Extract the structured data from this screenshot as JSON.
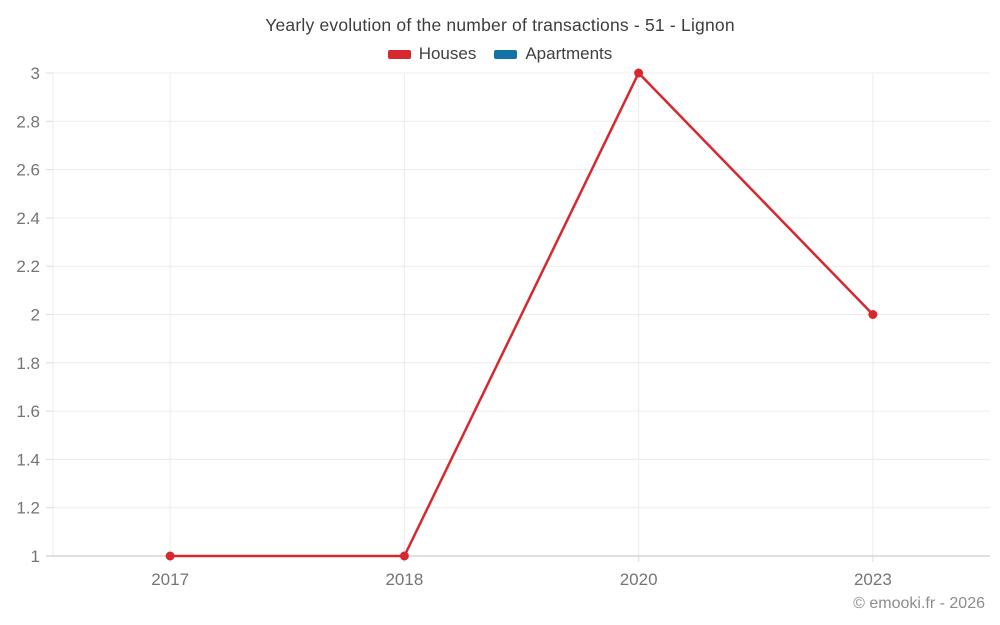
{
  "chart_data": {
    "type": "line",
    "title": "Yearly evolution of the number of transactions - 51 - Lignon",
    "categories": [
      "2017",
      "2018",
      "2020",
      "2023"
    ],
    "series": [
      {
        "name": "Houses",
        "color": "#d7282f",
        "values": [
          1,
          1,
          3,
          2
        ]
      },
      {
        "name": "Apartments",
        "color": "#1473a6",
        "values": [
          null,
          null,
          null,
          null
        ]
      }
    ],
    "xlabel": "",
    "ylabel": "",
    "ylim": [
      1,
      3
    ],
    "ytick_step": 0.2,
    "grid": true,
    "legend_position": "top",
    "marker": "circle"
  },
  "colors": {
    "gridline": "#ececec",
    "axis_line": "#d5d5d5",
    "tick": "#dcdcdc",
    "axis_text": "#757575",
    "title_text": "#3d3d3d"
  },
  "footer": {
    "copyright": "© emooki.fr - 2026"
  }
}
